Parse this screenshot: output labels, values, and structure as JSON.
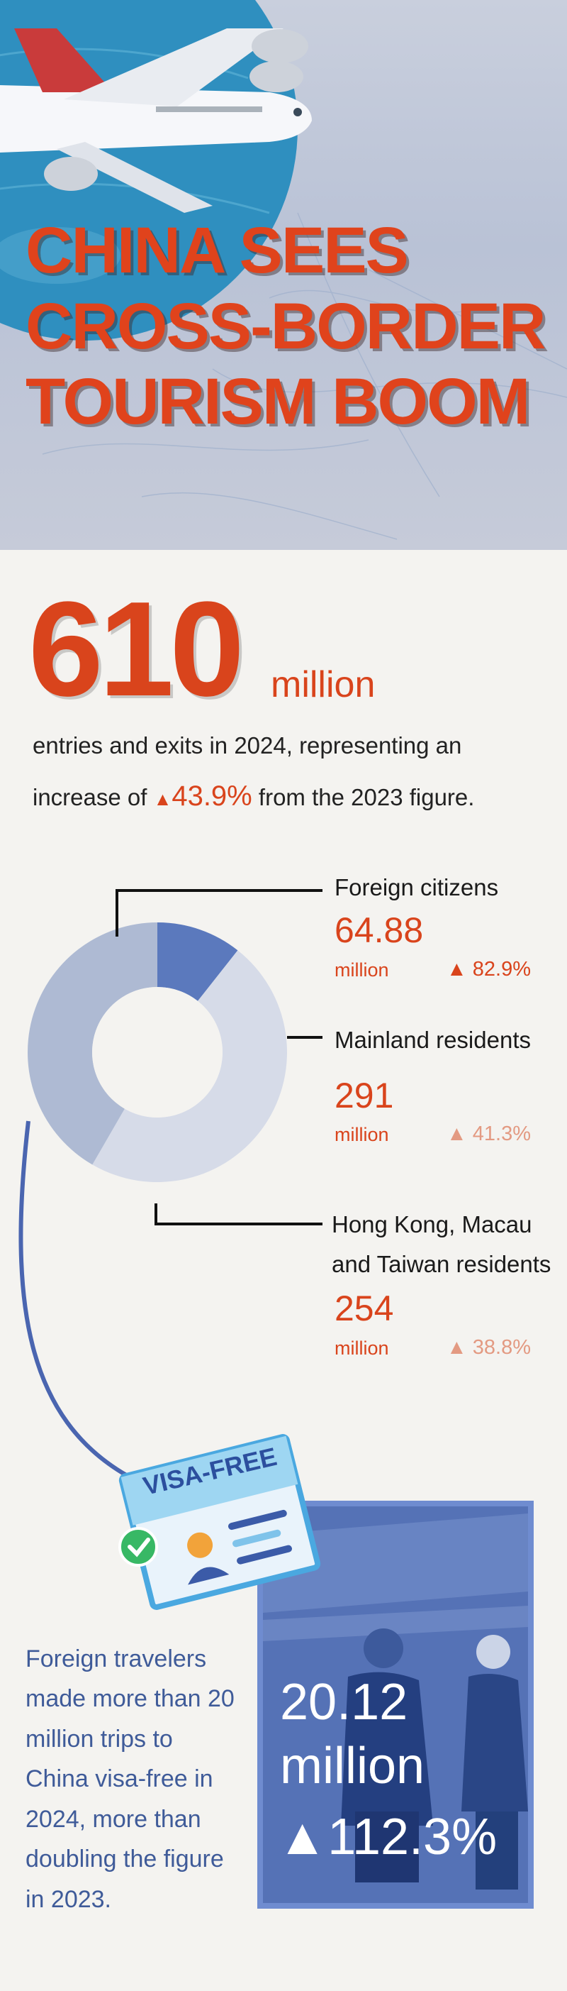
{
  "hero": {
    "title_lines": [
      "CHINA SEES",
      "CROSS-BORDER",
      "TOURISM BOOM"
    ]
  },
  "total": {
    "value": "610",
    "unit": "million",
    "desc_line1": "entries and exits in 2024, representing an",
    "desc_prefix": "increase of ",
    "desc_triangle": "▲",
    "desc_change": "43.9%",
    "desc_suffix": " from the 2023 figure."
  },
  "breakdown": [
    {
      "name": "Foreign citizens",
      "value": "64.88",
      "unit": "million",
      "change": "▲ 82.9%"
    },
    {
      "name": "Mainland residents",
      "value": "291",
      "unit": "million",
      "change": "▲ 41.3%"
    },
    {
      "name_line1": "Hong Kong, Macau",
      "name_line2": "and Taiwan residents",
      "value": "254",
      "unit": "million",
      "change": "▲ 38.8%"
    }
  ],
  "chart_data": {
    "type": "pie",
    "categories": [
      "Foreign citizens",
      "Mainland residents",
      "Hong Kong, Macau and Taiwan residents"
    ],
    "values": [
      64.88,
      291,
      254
    ],
    "unit": "million",
    "colors": [
      "#5b79bd",
      "#d6dbe8",
      "#aebad3"
    ]
  },
  "visa": {
    "badge": "VISA-FREE",
    "blurb": "Foreign travelers made more than 20 million trips to China visa-free in 2024, more than doubling the figure in 2023.",
    "value": "20.12",
    "unit": "million",
    "change": "▲112.3%"
  },
  "colors": {
    "accent": "#d9441c",
    "accent_light": "#e39a82",
    "blue": "#3f5b99",
    "card_blue": "#4d6bb0"
  }
}
